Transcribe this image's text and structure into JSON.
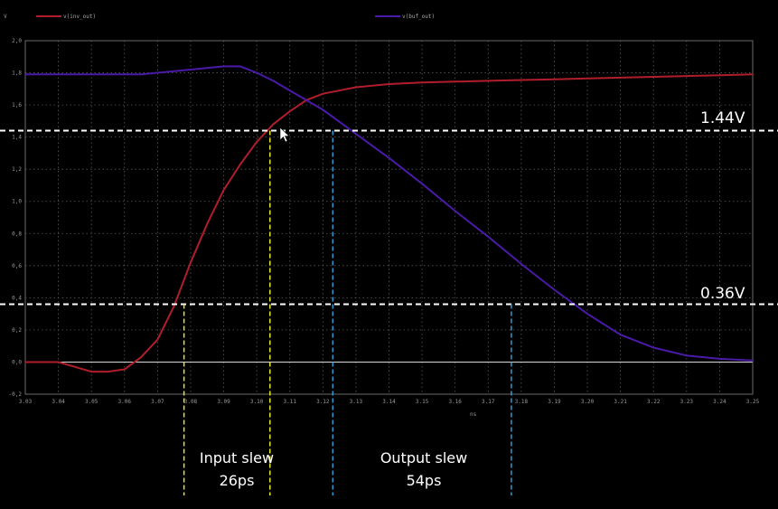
{
  "chart_data": {
    "type": "line",
    "ylabel_unit": "V",
    "xlabel_unit": "ns",
    "xlim": [
      3.03,
      3.25
    ],
    "ylim": [
      -0.2,
      2.0
    ],
    "x_ticks": [
      "3.03",
      "3.04",
      "3.05",
      "3.06",
      "3.07",
      "3.08",
      "3.09",
      "3.10",
      "3.11",
      "3.12",
      "3.13",
      "3.14",
      "3.15",
      "3.16",
      "3.17",
      "3.18",
      "3.19",
      "3.20",
      "3.21",
      "3.22",
      "3.23",
      "3.24",
      "3.25"
    ],
    "y_ticks": [
      "2,0",
      "1,8",
      "1,6",
      "1,4",
      "1,2",
      "1,0",
      "0,8",
      "0,6",
      "0,4",
      "0,2",
      "0,0",
      "-0,2"
    ],
    "y_tick_values": [
      2.0,
      1.8,
      1.6,
      1.4,
      1.2,
      1.0,
      0.8,
      0.6,
      0.4,
      0.2,
      0.0,
      -0.2
    ],
    "grid": true,
    "legend_position": "top",
    "series": [
      {
        "name": "v(inv_out)",
        "color": "#b01e2c",
        "x": [
          3.03,
          3.034,
          3.04,
          3.045,
          3.05,
          3.055,
          3.06,
          3.065,
          3.07,
          3.075,
          3.08,
          3.085,
          3.09,
          3.095,
          3.1,
          3.105,
          3.11,
          3.115,
          3.12,
          3.13,
          3.14,
          3.15,
          3.16,
          3.17,
          3.18,
          3.19,
          3.2,
          3.21,
          3.22,
          3.23,
          3.24,
          3.25
        ],
        "y": [
          0.0,
          0.0,
          0.0,
          -0.03,
          -0.06,
          -0.06,
          -0.045,
          0.03,
          0.14,
          0.35,
          0.62,
          0.86,
          1.07,
          1.23,
          1.37,
          1.48,
          1.56,
          1.63,
          1.67,
          1.71,
          1.73,
          1.74,
          1.745,
          1.75,
          1.755,
          1.76,
          1.765,
          1.77,
          1.775,
          1.78,
          1.785,
          1.79
        ]
      },
      {
        "name": "v(buf_out)",
        "color": "#4a1aa8",
        "x": [
          3.03,
          3.04,
          3.05,
          3.06,
          3.065,
          3.07,
          3.08,
          3.09,
          3.095,
          3.1,
          3.105,
          3.11,
          3.12,
          3.13,
          3.14,
          3.15,
          3.16,
          3.17,
          3.18,
          3.19,
          3.2,
          3.21,
          3.22,
          3.23,
          3.24,
          3.25
        ],
        "y": [
          1.79,
          1.79,
          1.79,
          1.79,
          1.79,
          1.8,
          1.82,
          1.84,
          1.84,
          1.8,
          1.75,
          1.69,
          1.57,
          1.42,
          1.27,
          1.11,
          0.94,
          0.78,
          0.61,
          0.45,
          0.3,
          0.17,
          0.09,
          0.04,
          0.02,
          0.01
        ]
      }
    ],
    "threshold_lines": [
      {
        "label": "1.44V",
        "value": 1.44
      },
      {
        "label": "0.36V",
        "value": 0.36
      }
    ],
    "markers": [
      {
        "x": 3.078,
        "color": "#e6e62e"
      },
      {
        "x": 3.104,
        "color": "#e6e62e"
      },
      {
        "x": 3.123,
        "color": "#2a9fd6"
      },
      {
        "x": 3.177,
        "color": "#2a9fd6"
      }
    ],
    "annotations": [
      {
        "line1": "Input slew",
        "line2": "26ps"
      },
      {
        "line1": "Output slew",
        "line2": "54ps"
      }
    ]
  }
}
